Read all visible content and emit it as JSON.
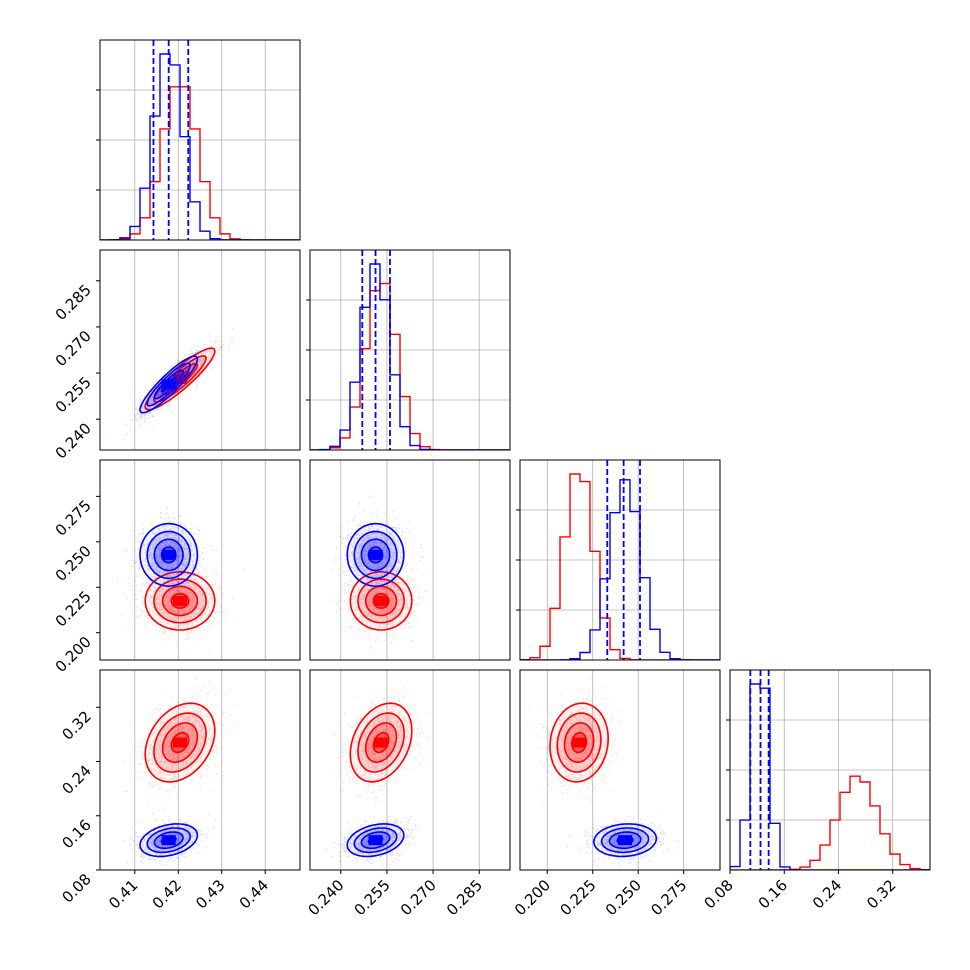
{
  "chart_data": {
    "type": "corner",
    "parameters": 4,
    "series": [
      {
        "name": "",
        "color": "#0000ff",
        "mean": [
          0.4178,
          0.2513,
          0.2428,
          0.124
        ],
        "sd": [
          0.0033,
          0.0046,
          0.0086,
          0.012
        ],
        "quantiles": [
          [
            0.4143,
            0.4178,
            0.4223
          ],
          [
            0.247,
            0.2513,
            0.256
          ],
          [
            0.233,
            0.242,
            0.251
          ],
          [
            0.11,
            0.125,
            0.137
          ]
        ]
      },
      {
        "name": "",
        "color": "#ff0000",
        "mean": [
          0.4204,
          0.2531,
          0.2175,
          0.268
        ],
        "sd": [
          0.004,
          0.005,
          0.008,
          0.029
        ],
        "quantiles": null
      }
    ],
    "correlations": {
      "0-1": 0.9,
      "0-2": 0.0,
      "0-3": 0.3,
      "1-2": 0.0,
      "1-3": 0.3,
      "2-3": 0.1
    },
    "ranges": [
      [
        0.402,
        0.448
      ],
      [
        0.23,
        0.295
      ],
      [
        0.185,
        0.295
      ],
      [
        0.08,
        0.375
      ]
    ],
    "ticks": {
      "p0": {
        "values": [
          0.41,
          0.42,
          0.43,
          0.44
        ],
        "labels": [
          "0.41",
          "0.42",
          "0.43",
          "0.44"
        ]
      },
      "p1": {
        "values": [
          0.24,
          0.255,
          0.27,
          0.285
        ],
        "labels": [
          "0.240",
          "0.255",
          "0.270",
          "0.285"
        ]
      },
      "p2": {
        "values": [
          0.2,
          0.225,
          0.25,
          0.275
        ],
        "labels": [
          "0.200",
          "0.225",
          "0.250",
          "0.275"
        ]
      },
      "p3": {
        "values": [
          0.08,
          0.16,
          0.24,
          0.32
        ],
        "labels": [
          "0.08",
          "0.16",
          "0.24",
          "0.32"
        ]
      }
    },
    "histogram_bins": 20,
    "grid": true,
    "axis_labels": []
  }
}
